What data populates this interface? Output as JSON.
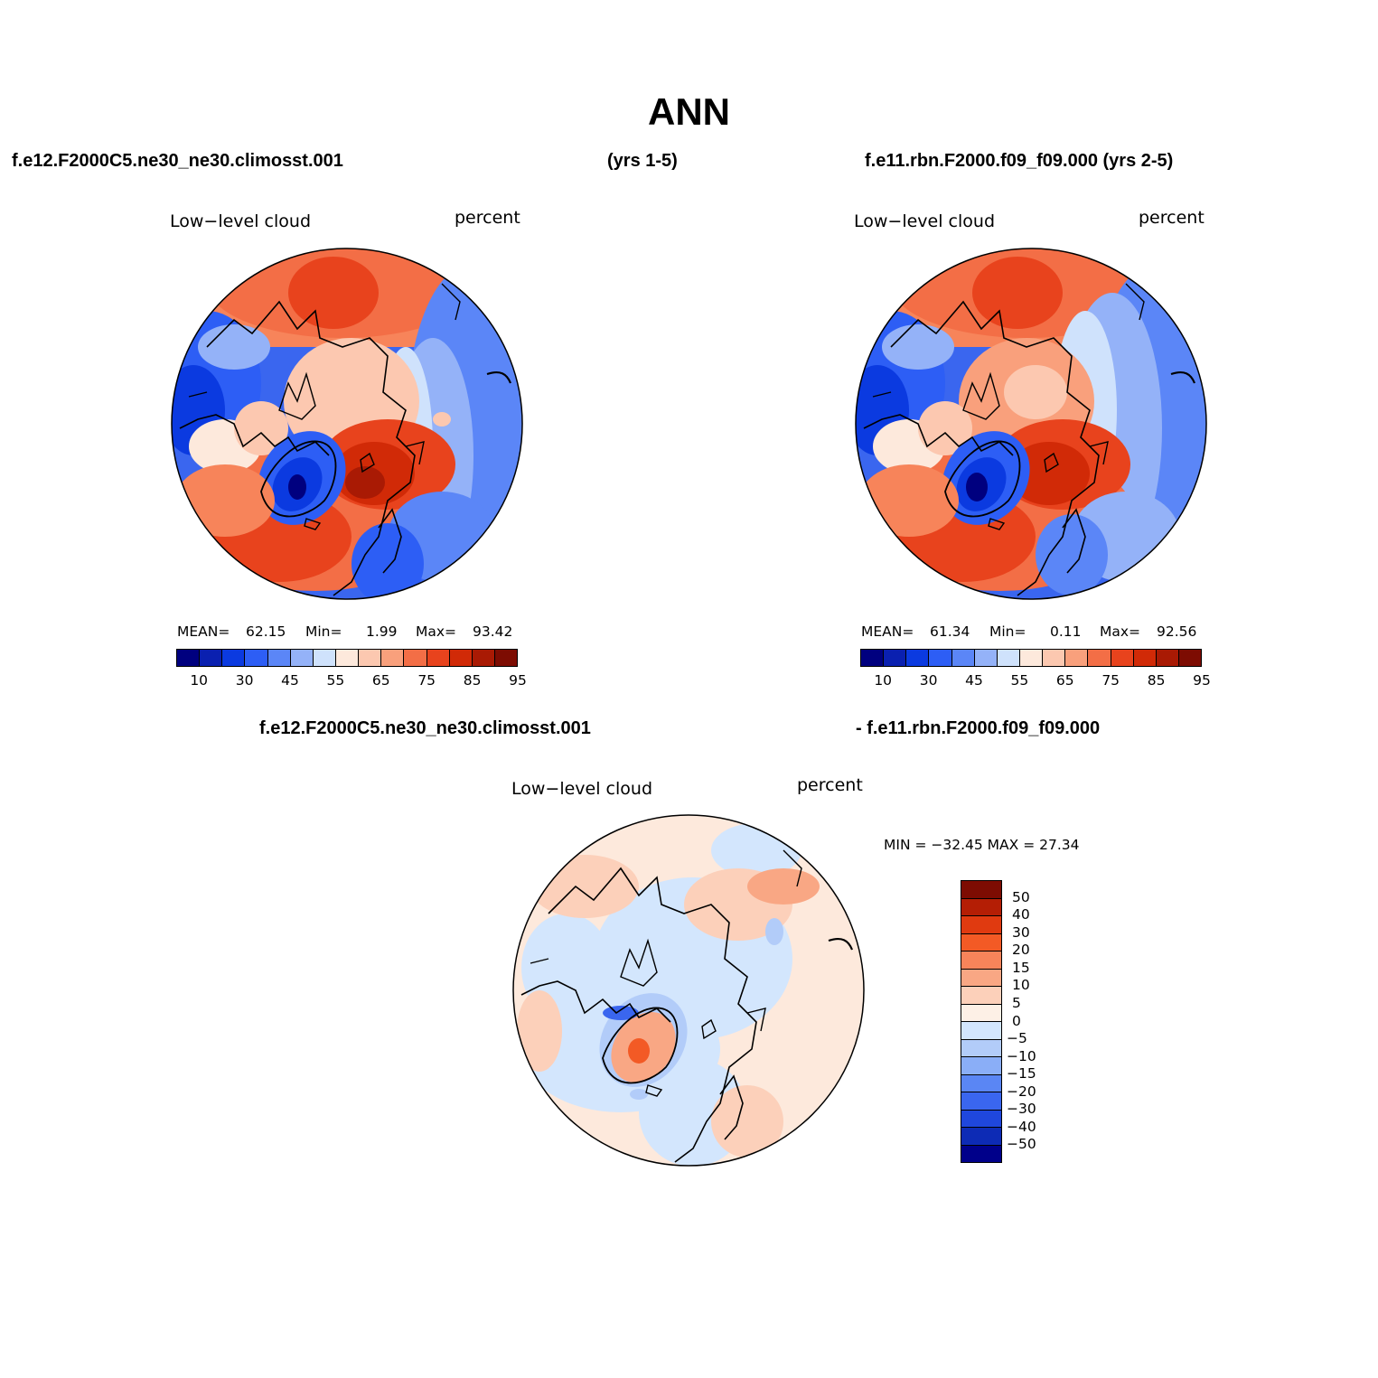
{
  "title": "ANN",
  "header": {
    "left_case": "f.e12.F2000C5.ne30_ne30.climosst.001",
    "left_years": "(yrs 1-5)",
    "right_case": "f.e11.rbn.F2000.f09_f09.000 (yrs 2-5)",
    "diff_left": "f.e12.F2000C5.ne30_ne30.climosst.001",
    "diff_right": "- f.e11.rbn.F2000.f09_f09.000"
  },
  "panels": [
    {
      "variable": "Low−level cloud",
      "units": "percent",
      "mean_label": "MEAN=",
      "mean": "62.15",
      "min_label": "Min=",
      "min": "1.99",
      "max_label": "Max=",
      "max": "93.42"
    },
    {
      "variable": "Low−level cloud",
      "units": "percent",
      "mean_label": "MEAN=",
      "mean": "61.34",
      "min_label": "Min=",
      "min": "0.11",
      "max_label": "Max=",
      "max": "92.56"
    }
  ],
  "diff_panel": {
    "variable": "Low−level cloud",
    "units": "percent",
    "minmax": "MIN = −32.45  MAX =  27.34"
  },
  "colorbar_main": {
    "colors": [
      "#00007f",
      "#0a20b0",
      "#0b3ae0",
      "#2d5ef5",
      "#5b86f7",
      "#94b2f8",
      "#cfe2fc",
      "#fde9dc",
      "#fcc8b0",
      "#f9a07c",
      "#f36e46",
      "#e8431d",
      "#d12a07",
      "#a91a04",
      "#7d0c02"
    ],
    "tick_labels": [
      "10",
      "30",
      "45",
      "55",
      "65",
      "75",
      "85",
      "95"
    ]
  },
  "colorbar_diff": {
    "colors": [
      "#7d0c02",
      "#b41e05",
      "#e03a10",
      "#f35a25",
      "#f7845a",
      "#f9a784",
      "#fcd0ba",
      "#fdf0e6",
      "#d3e6fd",
      "#b2ccf9",
      "#8aaef7",
      "#5a86f4",
      "#3a66ef",
      "#1f47dd",
      "#0d2bb5",
      "#00008a"
    ],
    "tick_labels": [
      "50",
      "40",
      "30",
      "20",
      "15",
      "10",
      "5",
      "0",
      "−5",
      "−10",
      "−15",
      "−20",
      "−30",
      "−40",
      "−50"
    ]
  }
}
